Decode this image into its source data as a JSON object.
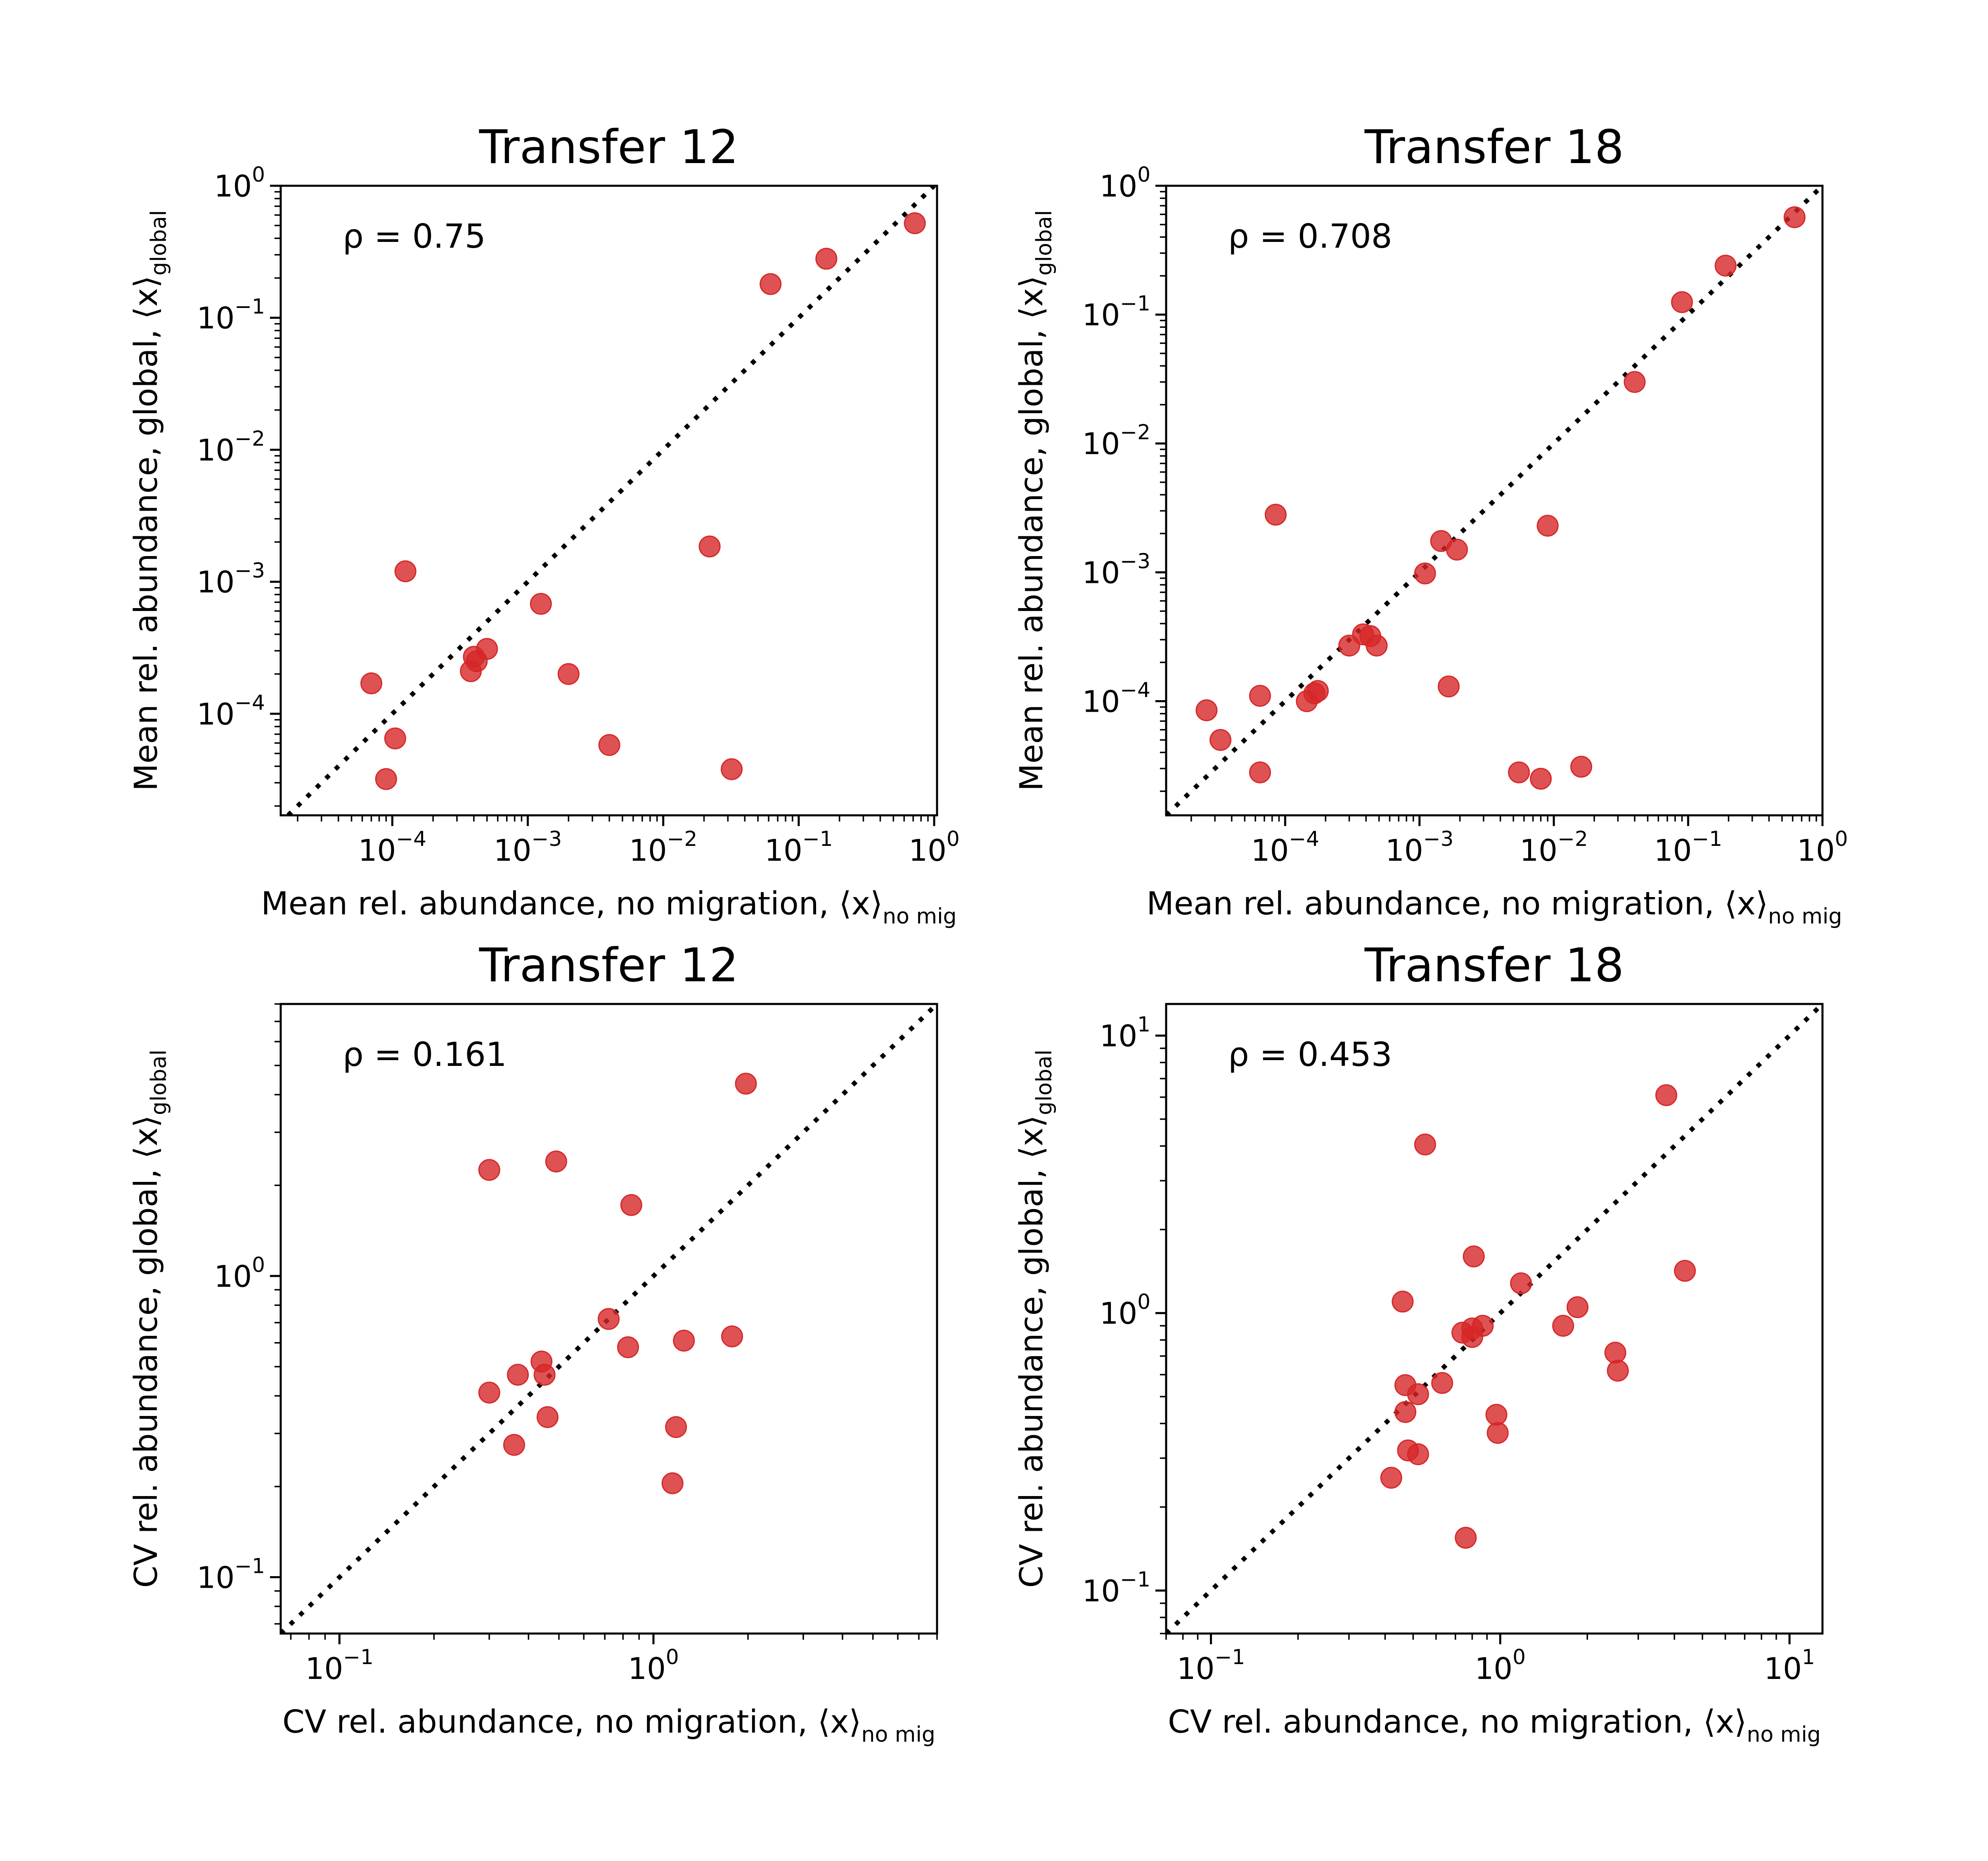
{
  "chart_data": [
    {
      "type": "scatter",
      "title": "Transfer 12",
      "xlabel": "Mean rel. abundance, no migration, ⟨x⟩",
      "xlabel_sub": "no mig",
      "ylabel": "Mean rel. abundance, global, ⟨x⟩",
      "ylabel_sub": "global",
      "annotation": "ρ = 0.75",
      "xscale": "log",
      "yscale": "log",
      "xlim": [
        1.5e-05,
        1.05
      ],
      "ylim": [
        1.7e-05,
        1.0
      ],
      "xticks": [
        "10⁻⁴",
        "10⁻³",
        "10⁻²",
        "10⁻¹",
        "10⁰"
      ],
      "yticks": [
        "10⁻⁴",
        "10⁻³",
        "10⁻²",
        "10⁻¹",
        "10⁰"
      ],
      "diagonal": "y = x",
      "x": [
        7e-05,
        0.000105,
        9e-05,
        0.000125,
        0.00038,
        0.0004,
        0.00042,
        0.0005,
        0.00125,
        0.002,
        0.004,
        0.022,
        0.032,
        0.062,
        0.16,
        0.72
      ],
      "y": [
        0.00017,
        6.5e-05,
        3.2e-05,
        0.0012,
        0.00021,
        0.00027,
        0.00025,
        0.00031,
        0.00068,
        0.0002,
        5.8e-05,
        0.00185,
        3.8e-05,
        0.18,
        0.28,
        0.52
      ]
    },
    {
      "type": "scatter",
      "title": "Transfer 18",
      "xlabel": "Mean rel. abundance, no migration, ⟨x⟩",
      "xlabel_sub": "no mig",
      "ylabel": "Mean rel. abundance, global, ⟨x⟩",
      "ylabel_sub": "global",
      "annotation": "ρ = 0.708",
      "xscale": "log",
      "yscale": "log",
      "xlim": [
        1.3e-05,
        1.0
      ],
      "ylim": [
        1.3e-05,
        1.0
      ],
      "xticks": [
        "10⁻⁴",
        "10⁻³",
        "10⁻²",
        "10⁻¹",
        "10⁰"
      ],
      "yticks": [
        "10⁻⁴",
        "10⁻³",
        "10⁻²",
        "10⁻¹",
        "10⁰"
      ],
      "diagonal": "y = x",
      "x": [
        2.6e-05,
        3.3e-05,
        6.5e-05,
        6.5e-05,
        8.5e-05,
        0.000145,
        0.000165,
        0.000175,
        0.0003,
        0.00038,
        0.00043,
        0.00048,
        0.0011,
        0.00145,
        0.00165,
        0.0019,
        0.0055,
        0.008,
        0.009,
        0.016,
        0.04,
        0.09,
        0.19,
        0.62
      ],
      "y": [
        8.5e-05,
        5e-05,
        0.00011,
        2.8e-05,
        0.0028,
        0.0001,
        0.000115,
        0.00012,
        0.00027,
        0.00033,
        0.00032,
        0.00027,
        0.00098,
        0.00175,
        0.00013,
        0.0015,
        2.8e-05,
        2.5e-05,
        0.0023,
        3.1e-05,
        0.03,
        0.125,
        0.24,
        0.57
      ]
    },
    {
      "type": "scatter",
      "title": "Transfer 12",
      "xlabel": "CV rel. abundance, no migration, ⟨x⟩",
      "xlabel_sub": "no mig",
      "ylabel": "CV rel. abundance, global, ⟨x⟩",
      "ylabel_sub": "global",
      "annotation": "ρ = 0.161",
      "xscale": "log",
      "yscale": "log",
      "xlim": [
        0.065,
        8.0
      ],
      "ylim": [
        0.065,
        8.0
      ],
      "xticks": [
        "10⁻¹",
        "10⁰"
      ],
      "yticks": [
        "10⁻¹",
        "10⁰"
      ],
      "diagonal": "y = x",
      "x": [
        0.3,
        0.3,
        0.36,
        0.37,
        0.44,
        0.45,
        0.46,
        0.49,
        0.72,
        0.83,
        0.85,
        1.15,
        1.18,
        1.25,
        1.78,
        1.97
      ],
      "y": [
        2.25,
        0.41,
        0.275,
        0.47,
        0.52,
        0.47,
        0.34,
        2.4,
        0.72,
        0.58,
        1.72,
        0.205,
        0.315,
        0.61,
        0.63,
        4.35
      ]
    },
    {
      "type": "scatter",
      "title": "Transfer 18",
      "xlabel": "CV rel. abundance, no migration, ⟨x⟩",
      "xlabel_sub": "no mig",
      "ylabel": "CV rel. abundance, global, ⟨x⟩",
      "ylabel_sub": "global",
      "annotation": "ρ = 0.453",
      "xscale": "log",
      "yscale": "log",
      "xlim": [
        0.07,
        13.0
      ],
      "ylim": [
        0.07,
        13.0
      ],
      "xticks": [
        "10⁻¹",
        "10⁰",
        "10¹"
      ],
      "yticks": [
        "10⁻¹",
        "10⁰",
        "10¹"
      ],
      "diagonal": "y = x",
      "x": [
        0.42,
        0.46,
        0.47,
        0.47,
        0.48,
        0.52,
        0.52,
        0.55,
        0.63,
        0.74,
        0.76,
        0.8,
        0.8,
        0.81,
        0.87,
        0.97,
        0.98,
        1.18,
        1.65,
        1.85,
        2.5,
        2.55,
        3.75,
        4.35
      ],
      "y": [
        0.255,
        1.1,
        0.44,
        0.55,
        0.32,
        0.31,
        0.51,
        4.05,
        0.56,
        0.85,
        0.155,
        0.88,
        0.82,
        1.6,
        0.9,
        0.43,
        0.37,
        1.28,
        0.9,
        1.05,
        0.72,
        0.62,
        6.1,
        1.42
      ]
    }
  ]
}
